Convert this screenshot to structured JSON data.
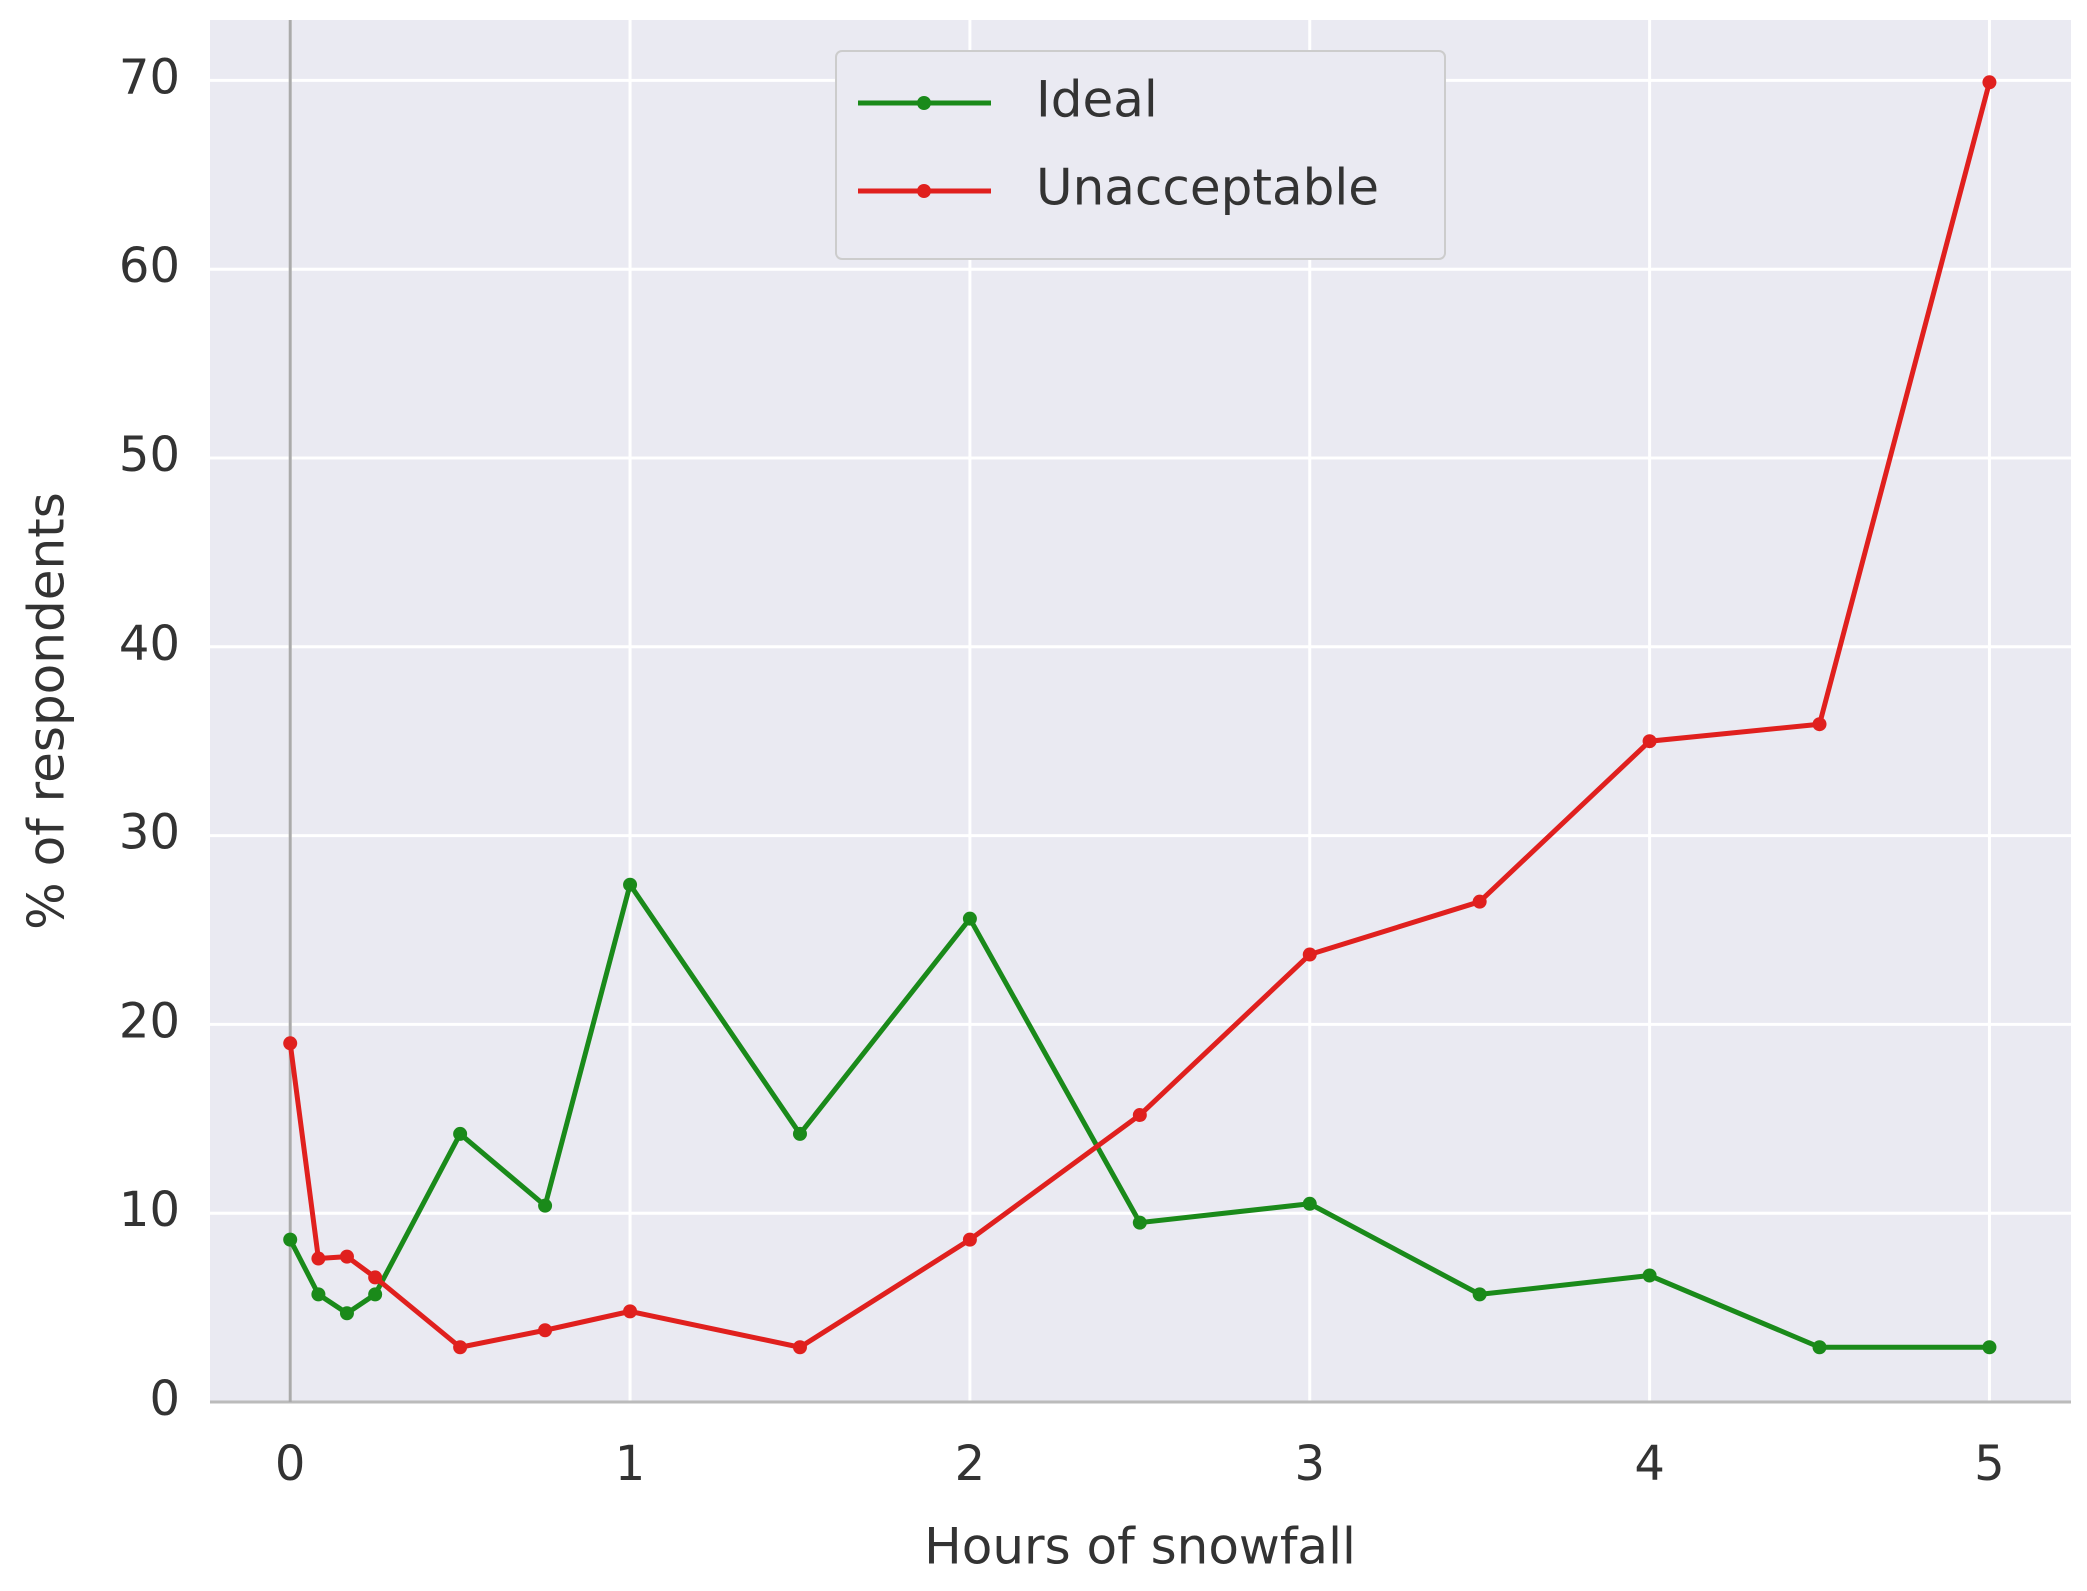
{
  "chart_data": {
    "type": "line",
    "xlabel": "Hours of snowfall",
    "ylabel": "% of respondents",
    "x": [
      0,
      0.083,
      0.167,
      0.25,
      0.5,
      0.75,
      1,
      1.5,
      2,
      2.5,
      3,
      3.5,
      4,
      4.5,
      5
    ],
    "series": [
      {
        "name": "Ideal",
        "color": "#1a8a1a",
        "values": [
          8.6,
          5.7,
          4.7,
          5.7,
          14.2,
          10.4,
          27.4,
          14.2,
          25.6,
          9.5,
          10.5,
          5.7,
          6.7,
          2.9,
          2.9
        ]
      },
      {
        "name": "Unacceptable",
        "color": "#e0201e",
        "values": [
          19.0,
          7.6,
          7.7,
          6.6,
          2.9,
          3.8,
          4.8,
          2.9,
          8.6,
          15.2,
          23.7,
          26.5,
          35.0,
          35.9,
          69.9
        ]
      }
    ],
    "xlim": [
      -0.236,
      5.24
    ],
    "ylim": [
      0,
      73.2
    ],
    "xticks": [
      0,
      1,
      2,
      3,
      4,
      5
    ],
    "yticks": [
      0,
      10,
      20,
      30,
      40,
      50,
      60,
      70
    ],
    "vlines": [
      0
    ],
    "grid": true,
    "legend": "upper center"
  }
}
